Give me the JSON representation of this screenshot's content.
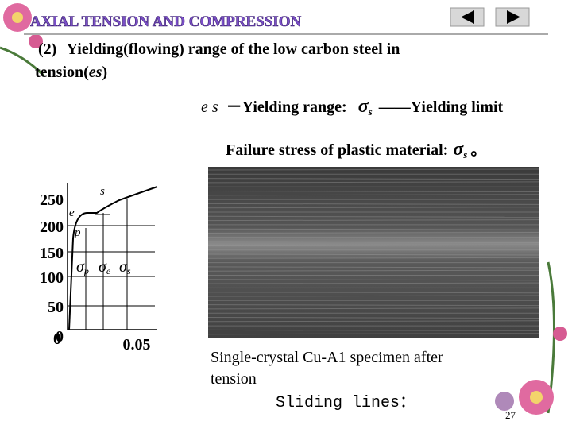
{
  "header": {
    "title": "AXIAL TENSION AND COMPRESSION"
  },
  "heading": {
    "number": "(2)",
    "text": "Yielding(flowing) range of the low carbon steel in",
    "text2": "tension(",
    "italic": "es",
    "close": ")"
  },
  "definition": {
    "symbol": "e s",
    "range": "－Yielding range:",
    "sigma": "σ",
    "sub": "s",
    "limit": "——Yielding limit"
  },
  "failure": {
    "text": "Failure stress of plastic material:",
    "sigma": "σ",
    "sub": "s",
    "end": "。"
  },
  "diagram": {
    "y_labels": [
      "250",
      "200",
      "150",
      "100",
      "50",
      "0"
    ],
    "x_labels": [
      "0",
      "0.05"
    ],
    "points": [
      "s",
      "e",
      "p"
    ],
    "markers": [
      {
        "sigma": "σ",
        "sub": "p"
      },
      {
        "sigma": "σ",
        "sub": "e"
      },
      {
        "sigma": "σ",
        "sub": "s"
      }
    ]
  },
  "photo": {
    "caption_line1": "Single-crystal Cu-A1 specimen after",
    "caption_line2": "tension",
    "note": "Sliding lines："
  },
  "page_number": "27"
}
